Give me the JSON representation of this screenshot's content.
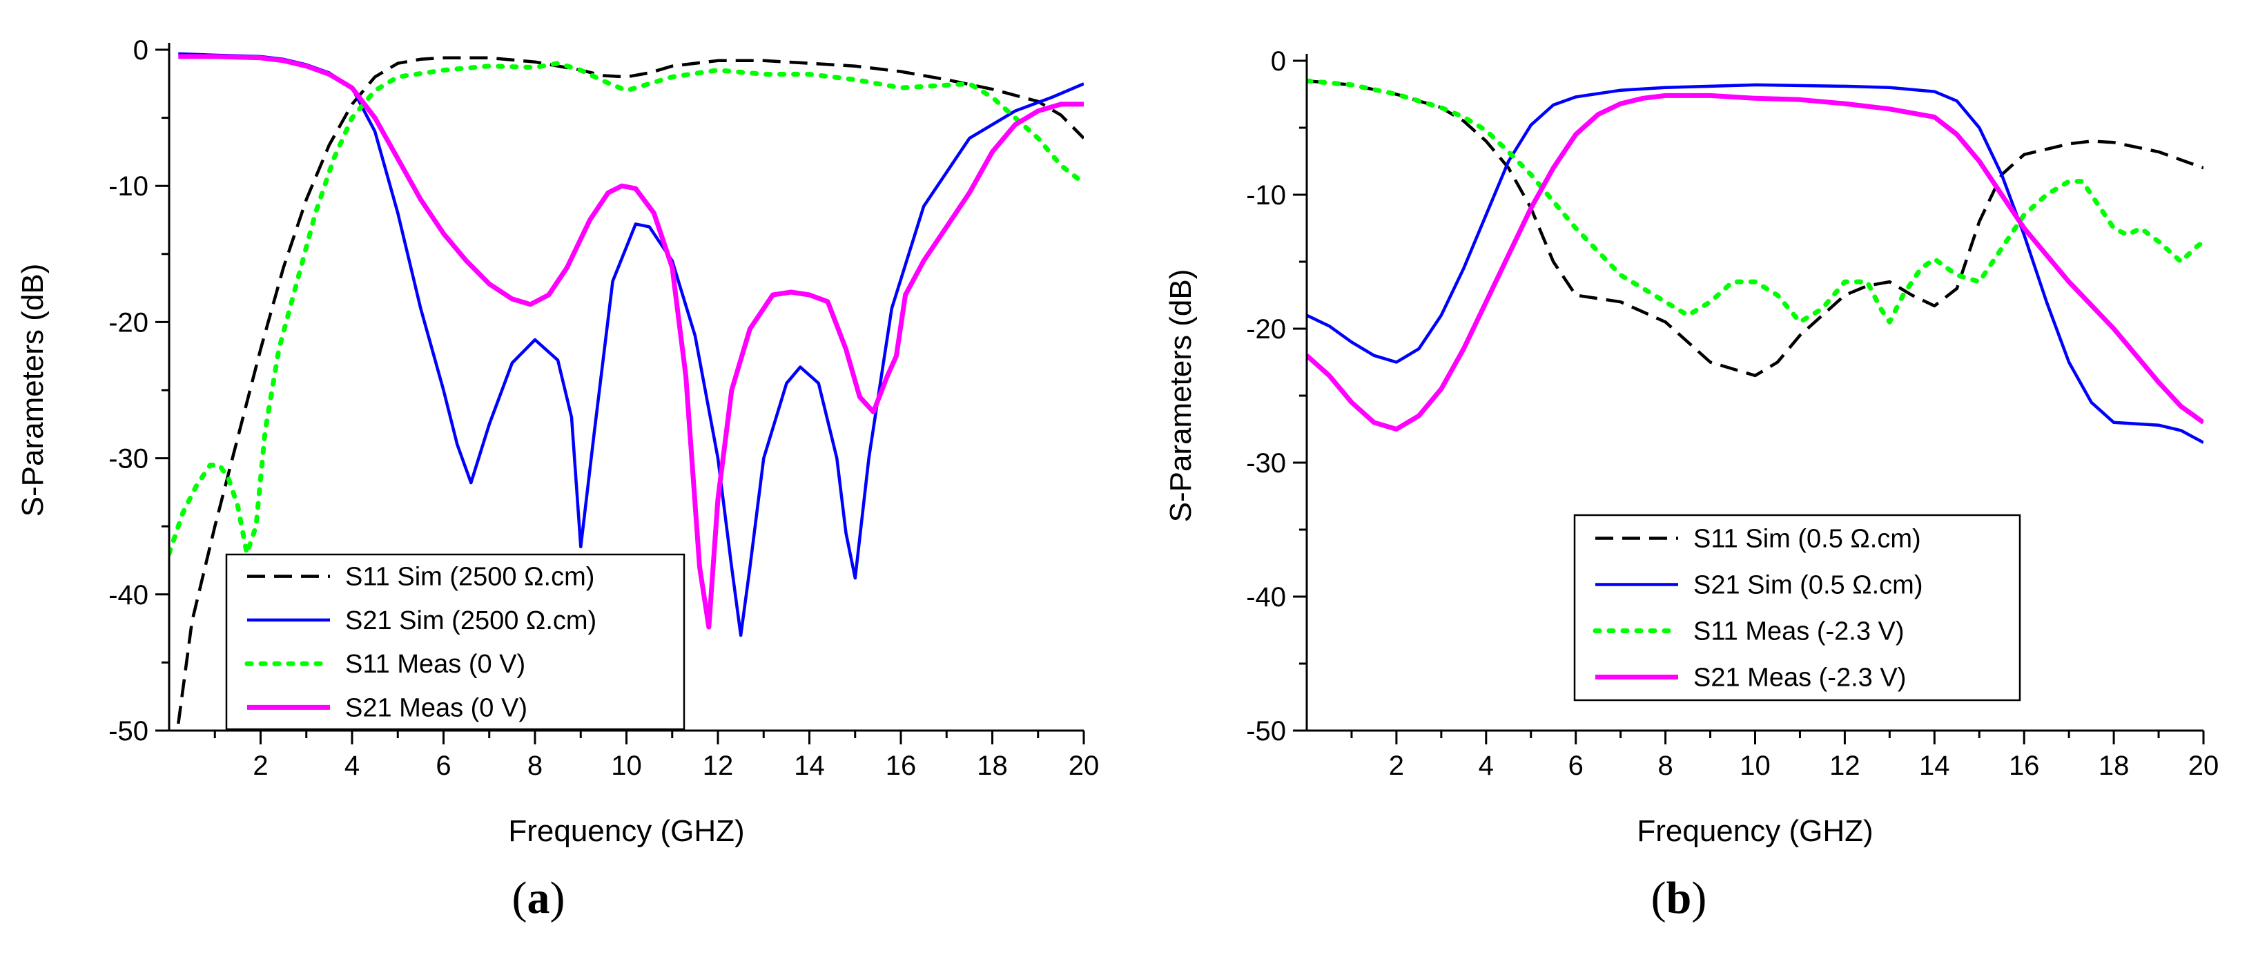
{
  "colors": {
    "s11_sim": "#000000",
    "s21_sim": "#0000ff",
    "s11_meas": "#00ff00",
    "s21_meas": "#ff00ff"
  },
  "chart_data": [
    {
      "type": "line",
      "panel_label": "a",
      "title": "",
      "xlabel": "Frequency (GHZ)",
      "ylabel": "S-Parameters (dB)",
      "xlim": [
        0,
        20
      ],
      "ylim": [
        -50,
        0
      ],
      "xticks": [
        2,
        4,
        6,
        8,
        10,
        12,
        14,
        16,
        18,
        20
      ],
      "yticks": [
        0,
        -10,
        -20,
        -30,
        -40,
        -50
      ],
      "grid": false,
      "legend_position": "bottom-left",
      "series": [
        {
          "name": "S11 Sim (2500 Ω.cm)",
          "style": "dashed",
          "color": "#000000",
          "x": [
            0.2,
            0.5,
            1,
            1.5,
            2,
            2.5,
            3,
            3.5,
            4,
            4.5,
            5,
            5.5,
            6,
            7,
            8,
            9,
            9.5,
            10,
            10.5,
            11,
            12,
            13,
            14,
            15,
            16,
            17,
            18,
            19,
            19.5,
            20
          ],
          "y": [
            -49.5,
            -42,
            -35,
            -28.5,
            -22,
            -16,
            -11,
            -7,
            -4,
            -2,
            -1,
            -0.7,
            -0.6,
            -0.6,
            -0.9,
            -1.5,
            -1.9,
            -2,
            -1.7,
            -1.2,
            -0.8,
            -0.8,
            -1,
            -1.2,
            -1.6,
            -2.2,
            -2.9,
            -3.8,
            -4.8,
            -6.5
          ]
        },
        {
          "name": "S21 Sim (2500 Ω.cm)",
          "style": "solid",
          "color": "#0000ff",
          "x": [
            0.2,
            1,
            2,
            2.5,
            3,
            3.5,
            4,
            4.5,
            5,
            5.5,
            6,
            6.3,
            6.6,
            7,
            7.5,
            8,
            8.5,
            8.8,
            9,
            9.3,
            9.7,
            10.2,
            10.5,
            11,
            11.5,
            12,
            12.3,
            12.5,
            12.7,
            13,
            13.5,
            13.8,
            14.2,
            14.6,
            14.8,
            15,
            15.3,
            15.8,
            16.5,
            17.5,
            18.5,
            19.3,
            20
          ],
          "y": [
            -0.3,
            -0.4,
            -0.5,
            -0.7,
            -1.1,
            -1.7,
            -2.8,
            -6,
            -12,
            -19,
            -25,
            -29,
            -31.8,
            -27.5,
            -23,
            -21.3,
            -22.8,
            -27,
            -36.5,
            -28,
            -17,
            -12.8,
            -13,
            -15.5,
            -21,
            -30,
            -38,
            -43,
            -38,
            -30,
            -24.5,
            -23.3,
            -24.5,
            -30,
            -35.5,
            -38.8,
            -30,
            -19,
            -11.5,
            -6.5,
            -4.5,
            -3.5,
            -2.5
          ]
        },
        {
          "name": "S11 Meas (0 V)",
          "style": "dotted",
          "color": "#00ff00",
          "x": [
            0,
            0.3,
            0.6,
            0.9,
            1.1,
            1.3,
            1.5,
            1.7,
            1.9,
            2.1,
            2.4,
            2.8,
            3.2,
            3.6,
            4,
            4.5,
            5,
            6,
            7,
            8,
            8.5,
            9,
            9.5,
            10,
            10.5,
            11,
            12,
            13,
            14,
            15,
            16,
            17,
            17.5,
            18,
            18.5,
            19,
            19.5,
            20
          ],
          "y": [
            -37,
            -34,
            -32,
            -30.5,
            -30.5,
            -31.5,
            -33.5,
            -37,
            -35,
            -28,
            -22,
            -17,
            -12,
            -8,
            -5,
            -3,
            -2,
            -1.5,
            -1.2,
            -1.3,
            -1,
            -1.5,
            -2.3,
            -3,
            -2.5,
            -2,
            -1.5,
            -1.8,
            -1.8,
            -2.2,
            -2.8,
            -2.6,
            -2.5,
            -3.5,
            -5,
            -6.5,
            -8.5,
            -9.8
          ]
        },
        {
          "name": "S21 Meas (0 V)",
          "style": "solid",
          "color": "#ff00ff",
          "x": [
            0.2,
            1,
            2,
            2.5,
            3,
            3.5,
            4,
            4.5,
            5,
            5.5,
            6,
            6.5,
            7,
            7.5,
            7.9,
            8.3,
            8.7,
            9.2,
            9.6,
            9.9,
            10.2,
            10.6,
            11,
            11.3,
            11.6,
            11.8,
            12,
            12.3,
            12.7,
            13.2,
            13.6,
            14,
            14.4,
            14.8,
            15.1,
            15.4,
            15.7,
            15.9,
            16.1,
            16.5,
            17,
            17.5,
            18,
            18.5,
            19,
            19.5,
            20
          ],
          "y": [
            -0.5,
            -0.5,
            -0.6,
            -0.8,
            -1.2,
            -1.8,
            -2.8,
            -5,
            -8,
            -11,
            -13.5,
            -15.5,
            -17.2,
            -18.3,
            -18.7,
            -18,
            -16,
            -12.5,
            -10.5,
            -10,
            -10.2,
            -12,
            -16,
            -24,
            -38,
            -42.4,
            -33,
            -25,
            -20.5,
            -18,
            -17.8,
            -18,
            -18.5,
            -22,
            -25.5,
            -26.6,
            -24,
            -22.5,
            -18,
            -15.5,
            -13,
            -10.5,
            -7.5,
            -5.5,
            -4.5,
            -4,
            -4
          ]
        }
      ]
    },
    {
      "type": "line",
      "panel_label": "b",
      "title": "",
      "xlabel": "Frequency (GHZ)",
      "ylabel": "S-Parameters (dB)",
      "xlim": [
        0,
        20
      ],
      "ylim": [
        -50,
        0
      ],
      "xticks": [
        2,
        4,
        6,
        8,
        10,
        12,
        14,
        16,
        18,
        20
      ],
      "yticks": [
        0,
        -10,
        -20,
        -30,
        -40,
        -50
      ],
      "grid": false,
      "legend_position": "center-left",
      "series": [
        {
          "name": "S11 Sim (0.5 Ω.cm)",
          "style": "dashed",
          "color": "#000000",
          "x": [
            0,
            1,
            2,
            3,
            3.5,
            4,
            4.5,
            5,
            5.5,
            6,
            7,
            8,
            9,
            10,
            10.5,
            11,
            12,
            12.5,
            13,
            13.5,
            14,
            14.5,
            15,
            15.5,
            16,
            17,
            17.5,
            18,
            19,
            20
          ],
          "y": [
            -1.5,
            -1.8,
            -2.5,
            -3.5,
            -4.5,
            -6,
            -8,
            -11,
            -15,
            -17.5,
            -18,
            -19.5,
            -22.5,
            -23.5,
            -22.5,
            -20.5,
            -17.5,
            -16.8,
            -16.5,
            -17.5,
            -18.3,
            -17,
            -12,
            -8.5,
            -7,
            -6.2,
            -6,
            -6.1,
            -6.8,
            -8
          ]
        },
        {
          "name": "S21 Sim (0.5 Ω.cm)",
          "style": "solid",
          "color": "#0000ff",
          "x": [
            0,
            0.5,
            1,
            1.5,
            2,
            2.5,
            3,
            3.5,
            4,
            4.5,
            5,
            5.5,
            6,
            7,
            8,
            10,
            12,
            13,
            14,
            14.5,
            15,
            15.5,
            16,
            16.5,
            17,
            17.5,
            18,
            19,
            19.5,
            20
          ],
          "y": [
            -19,
            -19.8,
            -21,
            -22,
            -22.5,
            -21.5,
            -19,
            -15.5,
            -11.5,
            -7.5,
            -4.8,
            -3.3,
            -2.7,
            -2.2,
            -2,
            -1.8,
            -1.9,
            -2,
            -2.3,
            -3,
            -5,
            -8.5,
            -13,
            -18,
            -22.5,
            -25.5,
            -27,
            -27.2,
            -27.6,
            -28.5
          ]
        },
        {
          "name": "S11 Meas (-2.3 V)",
          "style": "dotted",
          "color": "#00ff00",
          "x": [
            0,
            1,
            2,
            3,
            3.5,
            4,
            4.5,
            5,
            5.5,
            6,
            7,
            8,
            8.5,
            9,
            9.5,
            10,
            10.5,
            11,
            11.5,
            12,
            12.5,
            12.8,
            13,
            13.3,
            13.7,
            14,
            14.5,
            15,
            15.5,
            16,
            16.5,
            17,
            17.3,
            17.6,
            18,
            18.3,
            18.6,
            19,
            19.5,
            19.8,
            20
          ],
          "y": [
            -1.5,
            -1.8,
            -2.5,
            -3.5,
            -4.2,
            -5.2,
            -6.8,
            -8.5,
            -10.5,
            -12.5,
            -16,
            -18,
            -19,
            -18,
            -16.5,
            -16.5,
            -17.5,
            -19.5,
            -18.5,
            -16.5,
            -16.5,
            -18.5,
            -19.5,
            -17.5,
            -15.5,
            -14.8,
            -16,
            -16.5,
            -14,
            -11.5,
            -10,
            -9,
            -9,
            -10.5,
            -12.5,
            -13,
            -12.5,
            -13.5,
            -15,
            -14,
            -13.5
          ]
        },
        {
          "name": "S21 Meas (-2.3 V)",
          "style": "solid",
          "color": "#ff00ff",
          "x": [
            0,
            0.5,
            1,
            1.5,
            2,
            2.5,
            3,
            3.5,
            4,
            4.5,
            5,
            5.5,
            6,
            6.5,
            7,
            7.5,
            8,
            9,
            10,
            11,
            12,
            13,
            14,
            14.5,
            15,
            15.5,
            16,
            17,
            18,
            19,
            19.5,
            20
          ],
          "y": [
            -22,
            -23.5,
            -25.5,
            -27,
            -27.5,
            -26.5,
            -24.5,
            -21.5,
            -18,
            -14.5,
            -11,
            -8,
            -5.5,
            -4,
            -3.2,
            -2.8,
            -2.6,
            -2.6,
            -2.8,
            -2.9,
            -3.2,
            -3.6,
            -4.2,
            -5.5,
            -7.5,
            -10,
            -12.5,
            -16.5,
            -20,
            -24,
            -25.8,
            -27
          ]
        }
      ]
    }
  ]
}
